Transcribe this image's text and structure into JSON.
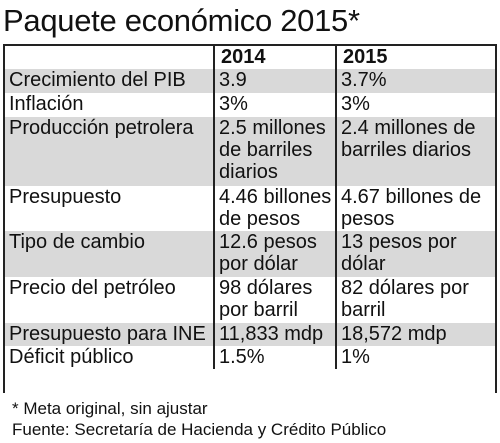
{
  "title": "Paquete económico 2015*",
  "table": {
    "headers": [
      "",
      "2014",
      "2015"
    ],
    "rows": [
      {
        "label": "Crecimiento del PIB",
        "y2014": "3.9",
        "y2015": "3.7%"
      },
      {
        "label": "Inflación",
        "y2014": "3%",
        "y2015": "3%"
      },
      {
        "label": "Producción petrolera",
        "y2014": "2.5 millones de barriles diarios",
        "y2015": "2.4 millones de barriles diarios"
      },
      {
        "label": "Presupuesto",
        "y2014": "4.46 billones de pesos",
        "y2015": "4.67 billones de pesos"
      },
      {
        "label": "Tipo de cambio",
        "y2014": "12.6 pesos por dólar",
        "y2015": "13 pesos por dólar"
      },
      {
        "label": "Precio del petróleo",
        "y2014": "98 dólares por barril",
        "y2015": "82 dólares por barril"
      },
      {
        "label": "Presupuesto para INE",
        "y2014": "11,833 mdp",
        "y2015": "18,572 mdp"
      },
      {
        "label": "Déficit público",
        "y2014": "1.5%",
        "y2015": "1%"
      }
    ]
  },
  "footnote": "* Meta original, sin ajustar",
  "source": "Fuente: Secretaría de Hacienda y Crédito Público",
  "colors": {
    "shade": "#d9d9d9",
    "rule": "#222222"
  }
}
